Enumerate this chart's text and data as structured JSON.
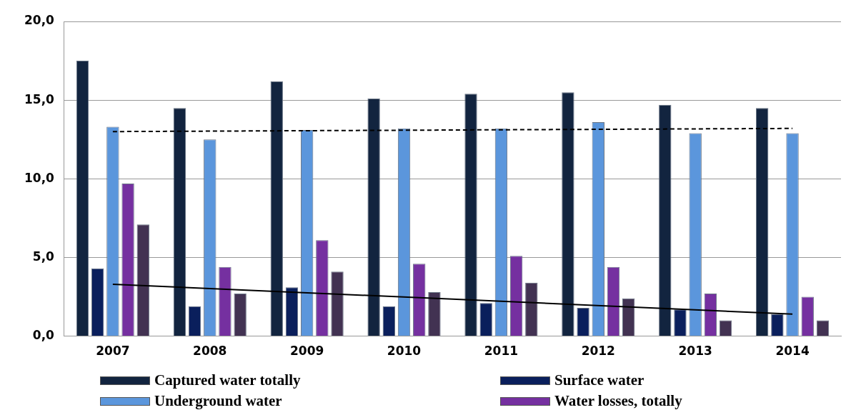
{
  "chart_data": {
    "type": "bar",
    "categories": [
      "2007",
      "2008",
      "2009",
      "2010",
      "2011",
      "2012",
      "2013",
      "2014"
    ],
    "series": [
      {
        "name": "Captured water totally",
        "color": "#12243f",
        "values": [
          17.5,
          14.5,
          16.2,
          15.1,
          15.4,
          15.5,
          14.7,
          14.5
        ]
      },
      {
        "name": "Surface water",
        "color": "#0a1f5c",
        "values": [
          4.3,
          1.9,
          3.1,
          1.9,
          2.1,
          1.8,
          1.7,
          1.4
        ]
      },
      {
        "name": "Underground water",
        "color": "#5b96dc",
        "values": [
          13.3,
          12.5,
          13.1,
          13.2,
          13.2,
          13.6,
          12.9,
          12.9
        ]
      },
      {
        "name": "Water losses, totally",
        "color": "#7530a0",
        "values": [
          9.7,
          4.4,
          6.1,
          4.6,
          5.1,
          4.4,
          2.7,
          2.5
        ]
      },
      {
        "color": "#423252",
        "values": [
          7.1,
          2.7,
          4.1,
          2.8,
          3.4,
          2.4,
          1.0,
          1.0
        ]
      },
      {
        "type": "line",
        "color": "#000000",
        "line_style": "dashed",
        "values": [
          13.0,
          null,
          null,
          null,
          null,
          null,
          null,
          13.2
        ]
      },
      {
        "type": "line",
        "color": "#000000",
        "line_style": "solid",
        "values": [
          3.3,
          null,
          null,
          null,
          null,
          null,
          null,
          1.4
        ]
      }
    ],
    "ylim": [
      0,
      20
    ],
    "yticks": [
      {
        "value": 0,
        "label": "0,0"
      },
      {
        "value": 5,
        "label": "5,0"
      },
      {
        "value": 10,
        "label": "10,0"
      },
      {
        "value": 15,
        "label": "15,0"
      },
      {
        "value": 20,
        "label": "20,0"
      }
    ],
    "grid": "y",
    "legend": "bottom",
    "marker": "none"
  }
}
